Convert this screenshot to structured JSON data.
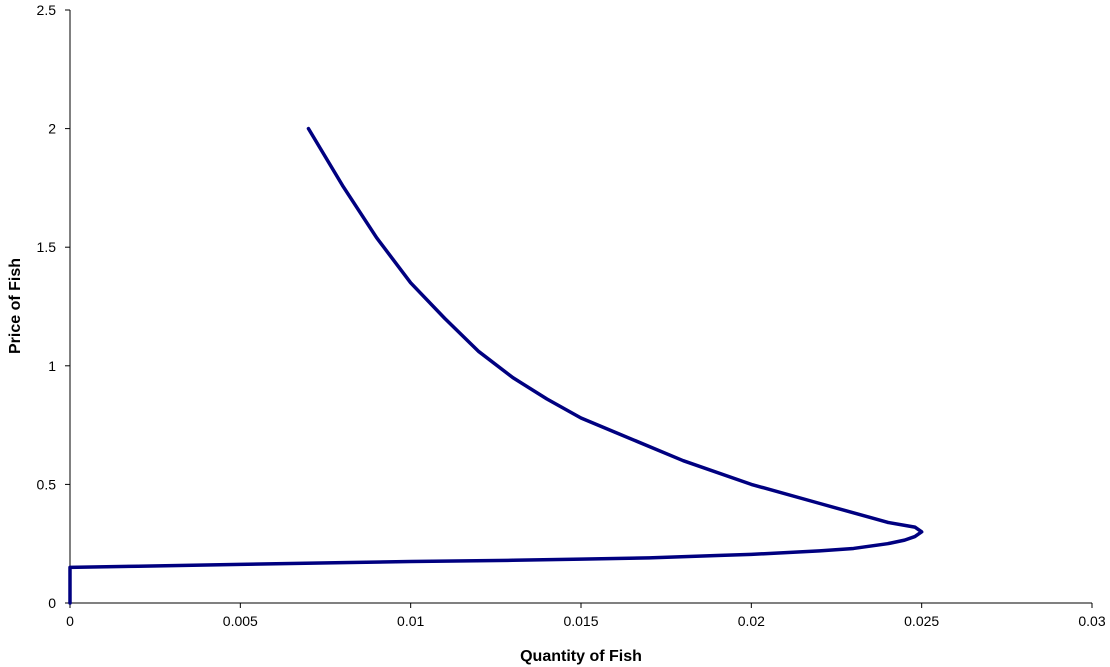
{
  "chart_data": {
    "type": "line",
    "title": "",
    "xlabel": "Quantity of Fish",
    "ylabel": "Price of Fish",
    "xlim": [
      0,
      0.03
    ],
    "ylim": [
      0,
      2.5
    ],
    "x_ticks": [
      "0",
      "0.005",
      "0.01",
      "0.015",
      "0.02",
      "0.025",
      "0.03"
    ],
    "y_ticks": [
      "0",
      "0.5",
      "1",
      "1.5",
      "2",
      "2.5"
    ],
    "grid": false,
    "legend": "none",
    "series": [
      {
        "color": "#000080",
        "points": [
          [
            0,
            0
          ],
          [
            0,
            0.1
          ],
          [
            0,
            0.15
          ],
          [
            0.002,
            0.155
          ],
          [
            0.005,
            0.163
          ],
          [
            0.008,
            0.17
          ],
          [
            0.01,
            0.175
          ],
          [
            0.013,
            0.18
          ],
          [
            0.015,
            0.185
          ],
          [
            0.017,
            0.19
          ],
          [
            0.019,
            0.2
          ],
          [
            0.02,
            0.205
          ],
          [
            0.022,
            0.22
          ],
          [
            0.023,
            0.23
          ],
          [
            0.024,
            0.25
          ],
          [
            0.0245,
            0.265
          ],
          [
            0.0248,
            0.28
          ],
          [
            0.025,
            0.3
          ],
          [
            0.0248,
            0.32
          ],
          [
            0.024,
            0.34
          ],
          [
            0.0235,
            0.36
          ],
          [
            0.022,
            0.42
          ],
          [
            0.02,
            0.5
          ],
          [
            0.018,
            0.6
          ],
          [
            0.016,
            0.72
          ],
          [
            0.015,
            0.78
          ],
          [
            0.014,
            0.86
          ],
          [
            0.013,
            0.95
          ],
          [
            0.012,
            1.06
          ],
          [
            0.011,
            1.2
          ],
          [
            0.01,
            1.35
          ],
          [
            0.009,
            1.54
          ],
          [
            0.008,
            1.76
          ],
          [
            0.007,
            2.0
          ]
        ]
      }
    ]
  }
}
